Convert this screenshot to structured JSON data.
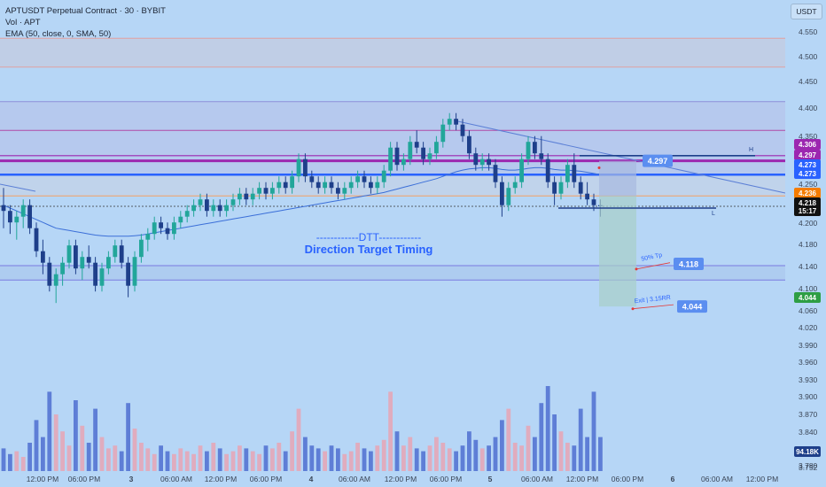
{
  "header": {
    "symbol_line": "APTUSDT Perpetual Contract · 30 · BYBIT",
    "volume_line": "Vol · APT",
    "indicator_line": "EMA (50, close, 0, SMA, 50)",
    "currency_button": "USDT"
  },
  "annotation": {
    "line1": "------------DTT------------",
    "line2": "Direction Target Timing"
  },
  "colors": {
    "background": "#b6d6f6",
    "up_candle": "#22a69a",
    "down_candle": "#1e3f8a",
    "accent_blue": "#2962ff",
    "purple_line": "#9c27b0",
    "orange_line": "#f57c00",
    "green_box": "#2e9e44"
  },
  "chart_data": {
    "type": "candlestick",
    "title": "APTUSDT Perpetual Contract · 30 · BYBIT",
    "y_axis": {
      "ticks": [
        "4.550",
        "4.500",
        "4.450",
        "4.400",
        "4.350",
        "4.300",
        "4.250",
        "4.200",
        "4.180",
        "4.140",
        "4.100",
        "4.060",
        "4.020",
        "3.990",
        "3.960",
        "3.930",
        "3.900",
        "3.870",
        "3.840",
        "3.810",
        "3.780",
        "3.752"
      ]
    },
    "x_axis": {
      "ticks": [
        "12:00 PM",
        "06:00 PM",
        "3",
        "06:00 AM",
        "12:00 PM",
        "06:00 PM",
        "4",
        "06:00 AM",
        "12:00 PM",
        "06:00 PM",
        "5",
        "06:00 AM",
        "12:00 PM",
        "06:00 PM",
        "6",
        "06:00 AM",
        "12:00 PM"
      ]
    },
    "price_tags": [
      {
        "label": "4.306",
        "color": "#9c27b0"
      },
      {
        "label": "4.297",
        "color": "#9c27b0"
      },
      {
        "label": "4.273",
        "color": "#2962ff"
      },
      {
        "label": "4.273",
        "color": "#2962ff"
      },
      {
        "label": "4.236",
        "color": "#f57c00"
      },
      {
        "label": "4.218",
        "color": "#111111"
      },
      {
        "label": "15:17",
        "color": "#111111"
      },
      {
        "label": "4.044",
        "color": "#2e9e44"
      },
      {
        "label": "94.18K",
        "color": "#1e3f8a"
      }
    ],
    "horizontal_levels": [
      {
        "value": 4.51,
        "label": ""
      },
      {
        "value": 4.46,
        "label": ""
      },
      {
        "value": 4.4,
        "label": ""
      },
      {
        "value": 4.35,
        "label": ""
      },
      {
        "value": 4.306,
        "label": ""
      },
      {
        "value": 4.297,
        "label": ""
      },
      {
        "value": 4.273,
        "label": ""
      },
      {
        "value": 4.236,
        "label": ""
      },
      {
        "value": 4.115,
        "label": ""
      },
      {
        "value": 4.09,
        "label": ""
      }
    ],
    "trade_labels": [
      {
        "text": "4.297",
        "value": 4.297
      },
      {
        "text": "4.118",
        "value": 4.118
      },
      {
        "text": "4.044",
        "value": 4.044
      }
    ],
    "trade_notes": [
      "50% Tp",
      "Exit | 3.15RR",
      "H",
      "L"
    ],
    "ohlc": [
      [
        4.22,
        4.25,
        4.18,
        4.21
      ],
      [
        4.21,
        4.22,
        4.17,
        4.19
      ],
      [
        4.19,
        4.21,
        4.16,
        4.2
      ],
      [
        4.2,
        4.23,
        4.18,
        4.22
      ],
      [
        4.22,
        4.23,
        4.17,
        4.18
      ],
      [
        4.18,
        4.19,
        4.13,
        4.14
      ],
      [
        4.14,
        4.16,
        4.1,
        4.12
      ],
      [
        4.12,
        4.13,
        4.07,
        4.08
      ],
      [
        4.08,
        4.11,
        4.05,
        4.1
      ],
      [
        4.1,
        4.13,
        4.08,
        4.12
      ],
      [
        4.12,
        4.16,
        4.11,
        4.15
      ],
      [
        4.15,
        4.16,
        4.1,
        4.11
      ],
      [
        4.11,
        4.14,
        4.09,
        4.13
      ],
      [
        4.13,
        4.15,
        4.11,
        4.12
      ],
      [
        4.12,
        4.13,
        4.07,
        4.08
      ],
      [
        4.08,
        4.12,
        4.07,
        4.11
      ],
      [
        4.11,
        4.14,
        4.1,
        4.13
      ],
      [
        4.13,
        4.16,
        4.12,
        4.15
      ],
      [
        4.15,
        4.16,
        4.11,
        4.12
      ],
      [
        4.12,
        4.13,
        4.06,
        4.08
      ],
      [
        4.08,
        4.14,
        4.07,
        4.13
      ],
      [
        4.13,
        4.17,
        4.12,
        4.16
      ],
      [
        4.16,
        4.18,
        4.14,
        4.17
      ],
      [
        4.17,
        4.2,
        4.16,
        4.19
      ],
      [
        4.19,
        4.2,
        4.17,
        4.18
      ],
      [
        4.18,
        4.19,
        4.16,
        4.17
      ],
      [
        4.17,
        4.2,
        4.16,
        4.19
      ],
      [
        4.19,
        4.21,
        4.18,
        4.2
      ],
      [
        4.2,
        4.22,
        4.19,
        4.21
      ],
      [
        4.21,
        4.23,
        4.2,
        4.22
      ],
      [
        4.22,
        4.24,
        4.21,
        4.23
      ],
      [
        4.23,
        4.24,
        4.2,
        4.21
      ],
      [
        4.21,
        4.23,
        4.2,
        4.22
      ],
      [
        4.22,
        4.23,
        4.2,
        4.21
      ],
      [
        4.21,
        4.23,
        4.2,
        4.22
      ],
      [
        4.22,
        4.24,
        4.21,
        4.23
      ],
      [
        4.23,
        4.25,
        4.22,
        4.24
      ],
      [
        4.24,
        4.25,
        4.22,
        4.23
      ],
      [
        4.23,
        4.25,
        4.22,
        4.24
      ],
      [
        4.24,
        4.26,
        4.23,
        4.25
      ],
      [
        4.25,
        4.26,
        4.23,
        4.24
      ],
      [
        4.24,
        4.26,
        4.23,
        4.25
      ],
      [
        4.25,
        4.27,
        4.24,
        4.26
      ],
      [
        4.26,
        4.27,
        4.24,
        4.25
      ],
      [
        4.25,
        4.28,
        4.24,
        4.27
      ],
      [
        4.27,
        4.31,
        4.26,
        4.3
      ],
      [
        4.3,
        4.31,
        4.26,
        4.27
      ],
      [
        4.27,
        4.28,
        4.25,
        4.26
      ],
      [
        4.26,
        4.27,
        4.24,
        4.25
      ],
      [
        4.25,
        4.27,
        4.24,
        4.26
      ],
      [
        4.26,
        4.27,
        4.24,
        4.25
      ],
      [
        4.25,
        4.26,
        4.23,
        4.24
      ],
      [
        4.24,
        4.26,
        4.23,
        4.25
      ],
      [
        4.25,
        4.27,
        4.24,
        4.26
      ],
      [
        4.26,
        4.28,
        4.25,
        4.27
      ],
      [
        4.27,
        4.28,
        4.25,
        4.26
      ],
      [
        4.26,
        4.27,
        4.24,
        4.25
      ],
      [
        4.25,
        4.27,
        4.24,
        4.26
      ],
      [
        4.26,
        4.29,
        4.25,
        4.28
      ],
      [
        4.28,
        4.33,
        4.27,
        4.32
      ],
      [
        4.32,
        4.33,
        4.28,
        4.29
      ],
      [
        4.29,
        4.31,
        4.28,
        4.3
      ],
      [
        4.3,
        4.34,
        4.29,
        4.33
      ],
      [
        4.33,
        4.35,
        4.31,
        4.32
      ],
      [
        4.32,
        4.33,
        4.29,
        4.3
      ],
      [
        4.3,
        4.32,
        4.29,
        4.31
      ],
      [
        4.31,
        4.34,
        4.3,
        4.33
      ],
      [
        4.33,
        4.37,
        4.32,
        4.36
      ],
      [
        4.36,
        4.38,
        4.35,
        4.37
      ],
      [
        4.37,
        4.38,
        4.35,
        4.36
      ],
      [
        4.36,
        4.37,
        4.33,
        4.34
      ],
      [
        4.34,
        4.35,
        4.3,
        4.31
      ],
      [
        4.31,
        4.32,
        4.28,
        4.29
      ],
      [
        4.29,
        4.31,
        4.28,
        4.3
      ],
      [
        4.3,
        4.31,
        4.28,
        4.29
      ],
      [
        4.29,
        4.3,
        4.25,
        4.26
      ],
      [
        4.26,
        4.27,
        4.2,
        4.22
      ],
      [
        4.22,
        4.26,
        4.21,
        4.25
      ],
      [
        4.25,
        4.27,
        4.24,
        4.26
      ],
      [
        4.26,
        4.31,
        4.25,
        4.3
      ],
      [
        4.3,
        4.34,
        4.29,
        4.33
      ],
      [
        4.33,
        4.34,
        4.3,
        4.31
      ],
      [
        4.31,
        4.34,
        4.29,
        4.3
      ],
      [
        4.3,
        4.31,
        4.25,
        4.26
      ],
      [
        4.26,
        4.27,
        4.22,
        4.24
      ],
      [
        4.24,
        4.27,
        4.23,
        4.26
      ],
      [
        4.26,
        4.3,
        4.25,
        4.29
      ],
      [
        4.29,
        4.31,
        4.25,
        4.26
      ],
      [
        4.26,
        4.27,
        4.23,
        4.24
      ],
      [
        4.24,
        4.26,
        4.22,
        4.23
      ],
      [
        4.23,
        4.24,
        4.21,
        4.22
      ],
      [
        4.22,
        4.23,
        4.2,
        4.218
      ]
    ],
    "ema": [
      4.22,
      4.215,
      4.21,
      4.205,
      4.2,
      4.195,
      4.19,
      4.185,
      4.18,
      4.178,
      4.176,
      4.174,
      4.172,
      4.17,
      4.168,
      4.167,
      4.166,
      4.166,
      4.166,
      4.166,
      4.167,
      4.168,
      4.17,
      4.172,
      4.174,
      4.176,
      4.178,
      4.18,
      4.182,
      4.184,
      4.186,
      4.188,
      4.19,
      4.192,
      4.194,
      4.196,
      4.198,
      4.2,
      4.202,
      4.204,
      4.206,
      4.208,
      4.21,
      4.212,
      4.214,
      4.216,
      4.218,
      4.22,
      4.222,
      4.224,
      4.226,
      4.228,
      4.23,
      4.232,
      4.234,
      4.236,
      4.238,
      4.24,
      4.242,
      4.245,
      4.248,
      4.251,
      4.254,
      4.257,
      4.26,
      4.263,
      4.266,
      4.27,
      4.274,
      4.278,
      4.281,
      4.283,
      4.284,
      4.285,
      4.285,
      4.284,
      4.282,
      4.281,
      4.281,
      4.282,
      4.284,
      4.285,
      4.285,
      4.284,
      4.282,
      4.281,
      4.281,
      4.28,
      4.279,
      4.277,
      4.275,
      4.273
    ],
    "volume": [
      8,
      6,
      7,
      5,
      10,
      18,
      12,
      28,
      20,
      14,
      9,
      25,
      16,
      10,
      22,
      12,
      8,
      9,
      7,
      24,
      15,
      10,
      8,
      6,
      9,
      7,
      6,
      8,
      7,
      6,
      9,
      7,
      10,
      8,
      6,
      7,
      9,
      8,
      7,
      6,
      9,
      8,
      10,
      7,
      14,
      22,
      12,
      9,
      8,
      7,
      9,
      8,
      6,
      7,
      10,
      8,
      7,
      9,
      11,
      28,
      14,
      9,
      12,
      8,
      7,
      9,
      12,
      10,
      8,
      7,
      9,
      14,
      11,
      8,
      9,
      12,
      18,
      22,
      10,
      9,
      16,
      12,
      24,
      30,
      20,
      14,
      10,
      9,
      22,
      12,
      28,
      12
    ]
  }
}
